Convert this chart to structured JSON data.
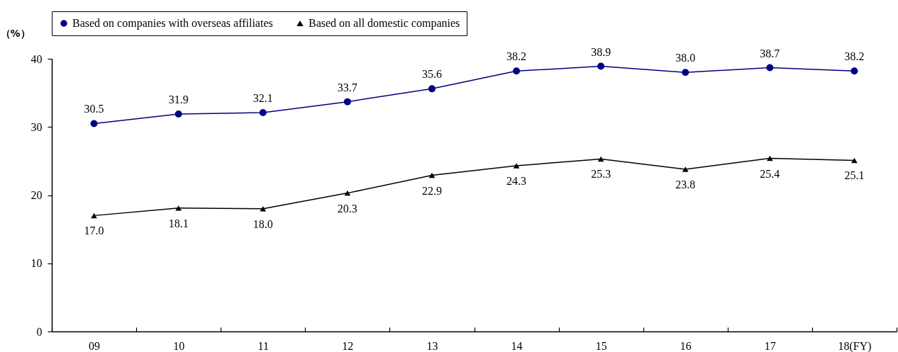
{
  "chart_data": {
    "type": "line",
    "categories": [
      "09",
      "10",
      "11",
      "12",
      "13",
      "14",
      "15",
      "16",
      "17",
      "18(FY)"
    ],
    "ylabel": "（%）",
    "ylim": [
      0,
      40
    ],
    "yticks": [
      0,
      10,
      20,
      30,
      40
    ],
    "legend": "top",
    "series": [
      {
        "name": "Based on companies with overseas affiliates",
        "color": "#000080",
        "marker": "circle",
        "values": [
          30.5,
          31.9,
          32.1,
          33.7,
          35.6,
          38.2,
          38.9,
          38.0,
          38.7,
          38.2
        ],
        "value_labels": [
          "30.5",
          "31.9",
          "32.1",
          "33.7",
          "35.6",
          "38.2",
          "38.9",
          "38.0",
          "38.7",
          "38.2"
        ]
      },
      {
        "name": "Based on all domestic companies",
        "color": "#000000",
        "marker": "triangle",
        "values": [
          17.0,
          18.1,
          18.0,
          20.3,
          22.9,
          24.3,
          25.3,
          23.8,
          25.4,
          25.1
        ],
        "value_labels": [
          "17.0",
          "18.1",
          "18.0",
          "20.3",
          "22.9",
          "24.3",
          "25.3",
          "23.8",
          "25.4",
          "25.1"
        ]
      }
    ]
  }
}
